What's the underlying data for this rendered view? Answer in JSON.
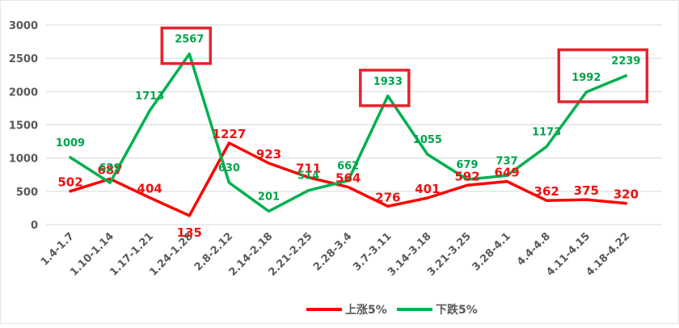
{
  "chart_data": {
    "type": "line",
    "categories": [
      "1.4-1.7",
      "1.10-1.14",
      "1.17-1.21",
      "1.24-1.28",
      "2.8-2.12",
      "2.14-2.18",
      "2.21-2.25",
      "2.28-3.4",
      "3.7-3.11",
      "3.14-3.18",
      "3.21-3.25",
      "3.28-4.1",
      "4.4-4.8",
      "4.11-4.15",
      "4.18-4.22"
    ],
    "series": [
      {
        "name": "上涨5%",
        "color": "#ff0000",
        "values": [
          502,
          687,
          404,
          135,
          1227,
          923,
          711,
          564,
          276,
          401,
          592,
          649,
          362,
          375,
          320
        ]
      },
      {
        "name": "下跌5%",
        "color": "#00b050",
        "values": [
          1009,
          629,
          1713,
          2567,
          630,
          201,
          514,
          662,
          1933,
          1055,
          679,
          737,
          1173,
          1992,
          2239
        ]
      }
    ],
    "ylim": [
      0,
      3000
    ],
    "yticks": [
      0,
      500,
      1000,
      1500,
      2000,
      2500,
      3000
    ],
    "grid": true,
    "legend": "bottom",
    "highlight_color": "#e8222c",
    "highlights": [
      {
        "categories": [
          "1.24-1.28"
        ],
        "series": "下跌5%"
      },
      {
        "categories": [
          "3.7-3.11"
        ],
        "series": "下跌5%"
      },
      {
        "categories": [
          "4.11-4.15",
          "4.18-4.22"
        ],
        "series": "下跌5%"
      }
    ]
  }
}
